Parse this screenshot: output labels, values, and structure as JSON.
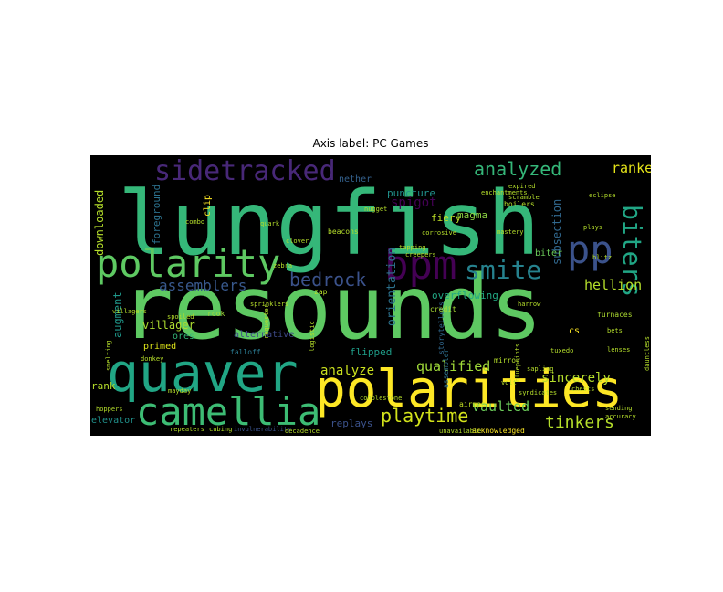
{
  "figure": {
    "title": "Axis label: PC Games"
  },
  "chart_data": {
    "type": "wordcloud",
    "title": "Axis label: PC Games",
    "background": "#000000",
    "colormap": "viridis",
    "words": [
      {
        "text": "lungfish",
        "size": 96,
        "color": "#35b779"
      },
      {
        "text": "resounds",
        "size": 96,
        "color": "#5ec962"
      },
      {
        "text": "polarities",
        "size": 56,
        "color": "#fde725"
      },
      {
        "text": "quaver",
        "size": 58,
        "color": "#21a685"
      },
      {
        "text": "camellia",
        "size": 42,
        "color": "#3dbc74"
      },
      {
        "text": "polarity",
        "size": 42,
        "color": "#5ec962"
      },
      {
        "text": "bpm",
        "size": 44,
        "color": "#440154"
      },
      {
        "text": "pp",
        "size": 42,
        "color": "#3b528b"
      },
      {
        "text": "sidetracked",
        "size": 30,
        "color": "#482878"
      },
      {
        "text": "smite",
        "size": 28,
        "color": "#26828e"
      },
      {
        "text": "biters",
        "size": 28,
        "color": "#21a685"
      },
      {
        "text": "analyzed",
        "size": 20,
        "color": "#35b779"
      },
      {
        "text": "bedrock",
        "size": 20,
        "color": "#3b528b"
      },
      {
        "text": "playtime",
        "size": 20,
        "color": "#d2e21b"
      },
      {
        "text": "tinkers",
        "size": 18,
        "color": "#b5de2b"
      },
      {
        "text": "assemblers",
        "size": 16,
        "color": "#38588c"
      },
      {
        "text": "ranked",
        "size": 15,
        "color": "#e5e419"
      },
      {
        "text": "hellion",
        "size": 15,
        "color": "#b5de2b"
      },
      {
        "text": "qualified",
        "size": 15,
        "color": "#a0da39"
      },
      {
        "text": "vaulted",
        "size": 15,
        "color": "#6ccd5a"
      },
      {
        "text": "analyze",
        "size": 14,
        "color": "#cae11f"
      },
      {
        "text": "sincerely",
        "size": 14,
        "color": "#b5de2b"
      },
      {
        "text": "spigot",
        "size": 14,
        "color": "#440154"
      },
      {
        "text": "orientation",
        "size": 13,
        "color": "#2c728e"
      },
      {
        "text": "downloaded",
        "size": 12,
        "color": "#b5de2b"
      },
      {
        "text": "subsection",
        "size": 12,
        "color": "#31688e"
      },
      {
        "text": "villager",
        "size": 12,
        "color": "#addc30"
      },
      {
        "text": "augment",
        "size": 12,
        "color": "#1f988b"
      },
      {
        "text": "foreground",
        "size": 11,
        "color": "#2c728e"
      },
      {
        "text": "fiery",
        "size": 11,
        "color": "#bddf26"
      },
      {
        "text": "magma",
        "size": 11,
        "color": "#8fd744"
      },
      {
        "text": "overflowing",
        "size": 11,
        "color": "#22a884"
      },
      {
        "text": "puncture",
        "size": 11,
        "color": "#21918c"
      },
      {
        "text": "flipped",
        "size": 11,
        "color": "#1f9e89"
      },
      {
        "text": "replays",
        "size": 11,
        "color": "#3b528b"
      },
      {
        "text": "rank",
        "size": 11,
        "color": "#b5de2b"
      },
      {
        "text": "primed",
        "size": 10,
        "color": "#dce319"
      },
      {
        "text": "ores",
        "size": 10,
        "color": "#35b779"
      },
      {
        "text": "alternative",
        "size": 10,
        "color": "#3e4a89"
      },
      {
        "text": "nether",
        "size": 10,
        "color": "#34618d"
      },
      {
        "text": "clip",
        "size": 10,
        "color": "#fde725"
      },
      {
        "text": "biter",
        "size": 10,
        "color": "#6ccd5a"
      },
      {
        "text": "cs",
        "size": 10,
        "color": "#fde725"
      },
      {
        "text": "elevator",
        "size": 10,
        "color": "#21918c"
      },
      {
        "text": "furnaces",
        "size": 8,
        "color": "#addc30"
      },
      {
        "text": "mirror",
        "size": 8,
        "color": "#b5de2b"
      },
      {
        "text": "storytellers",
        "size": 8,
        "color": "#31688e"
      },
      {
        "text": "assembler",
        "size": 8,
        "color": "#2c728e"
      },
      {
        "text": "credit",
        "size": 8,
        "color": "#a8db34"
      },
      {
        "text": "airman",
        "size": 8,
        "color": "#c2df23"
      },
      {
        "text": "acknowledged",
        "size": 8,
        "color": "#fde725"
      },
      {
        "text": "rook",
        "size": 8,
        "color": "#9fda3a"
      },
      {
        "text": "falloff",
        "size": 8,
        "color": "#2a788e"
      },
      {
        "text": "zap",
        "size": 8,
        "color": "#b5de2b"
      },
      {
        "text": "beacons",
        "size": 8,
        "color": "#b5de2b"
      },
      {
        "text": "boilers",
        "size": 8,
        "color": "#b5de2b"
      },
      {
        "text": "combo",
        "size": 7,
        "color": "#b5de2b"
      },
      {
        "text": "quark",
        "size": 7,
        "color": "#b5de2b"
      },
      {
        "text": "clover",
        "size": 7,
        "color": "#b5de2b"
      },
      {
        "text": "nugget",
        "size": 7,
        "color": "#b5de2b"
      },
      {
        "text": "expired",
        "size": 7,
        "color": "#b5de2b"
      },
      {
        "text": "scramble",
        "size": 7,
        "color": "#b5de2b"
      },
      {
        "text": "enchantments",
        "size": 7,
        "color": "#b5de2b"
      },
      {
        "text": "mastery",
        "size": 7,
        "color": "#b5de2b"
      },
      {
        "text": "plays",
        "size": 7,
        "color": "#b5de2b"
      },
      {
        "text": "corrosive",
        "size": 7,
        "color": "#b5de2b"
      },
      {
        "text": "creepers",
        "size": 7,
        "color": "#b5de2b"
      },
      {
        "text": "harrow",
        "size": 7,
        "color": "#b5de2b"
      },
      {
        "text": "villagers",
        "size": 7,
        "color": "#b5de2b"
      },
      {
        "text": "hoppers",
        "size": 7,
        "color": "#b5de2b"
      },
      {
        "text": "repeaters",
        "size": 7,
        "color": "#b5de2b"
      },
      {
        "text": "cubing",
        "size": 7,
        "color": "#b5de2b"
      },
      {
        "text": "invulnerability",
        "size": 7,
        "color": "#3b528b"
      },
      {
        "text": "decadence",
        "size": 7,
        "color": "#b5de2b"
      },
      {
        "text": "unavailable",
        "size": 7,
        "color": "#b5de2b"
      },
      {
        "text": "syndicates",
        "size": 7,
        "color": "#b5de2b"
      },
      {
        "text": "chests",
        "size": 7,
        "color": "#b5de2b"
      },
      {
        "text": "sending",
        "size": 7,
        "color": "#b5de2b"
      },
      {
        "text": "accuracy",
        "size": 7,
        "color": "#b5de2b"
      },
      {
        "text": "bets",
        "size": 7,
        "color": "#b5de2b"
      },
      {
        "text": "eclipse",
        "size": 7,
        "color": "#b5de2b"
      },
      {
        "text": "zebra",
        "size": 7,
        "color": "#b5de2b"
      },
      {
        "text": "blueprints",
        "size": 7,
        "color": "#b5de2b"
      },
      {
        "text": "smelting",
        "size": 7,
        "color": "#b5de2b"
      },
      {
        "text": "requester",
        "size": 7,
        "color": "#b5de2b"
      },
      {
        "text": "tapping",
        "size": 7,
        "color": "#b5de2b"
      },
      {
        "text": "volt",
        "size": 7,
        "color": "#b5de2b"
      },
      {
        "text": "lenses",
        "size": 7,
        "color": "#b5de2b"
      },
      {
        "text": "blitz",
        "size": 7,
        "color": "#b5de2b"
      },
      {
        "text": "cobblestone",
        "size": 7,
        "color": "#b5de2b"
      },
      {
        "text": "sapling",
        "size": 7,
        "color": "#b5de2b"
      },
      {
        "text": "donkey",
        "size": 7,
        "color": "#b5de2b"
      },
      {
        "text": "spoiled",
        "size": 7,
        "color": "#b5de2b"
      },
      {
        "text": "dauntless",
        "size": 7,
        "color": "#b5de2b"
      },
      {
        "text": "sprinklers",
        "size": 7,
        "color": "#b5de2b"
      },
      {
        "text": "mayday",
        "size": 7,
        "color": "#b5de2b"
      },
      {
        "text": "logistic",
        "size": 7,
        "color": "#b5de2b"
      },
      {
        "text": "tuxedo",
        "size": 7,
        "color": "#b5de2b"
      }
    ]
  }
}
